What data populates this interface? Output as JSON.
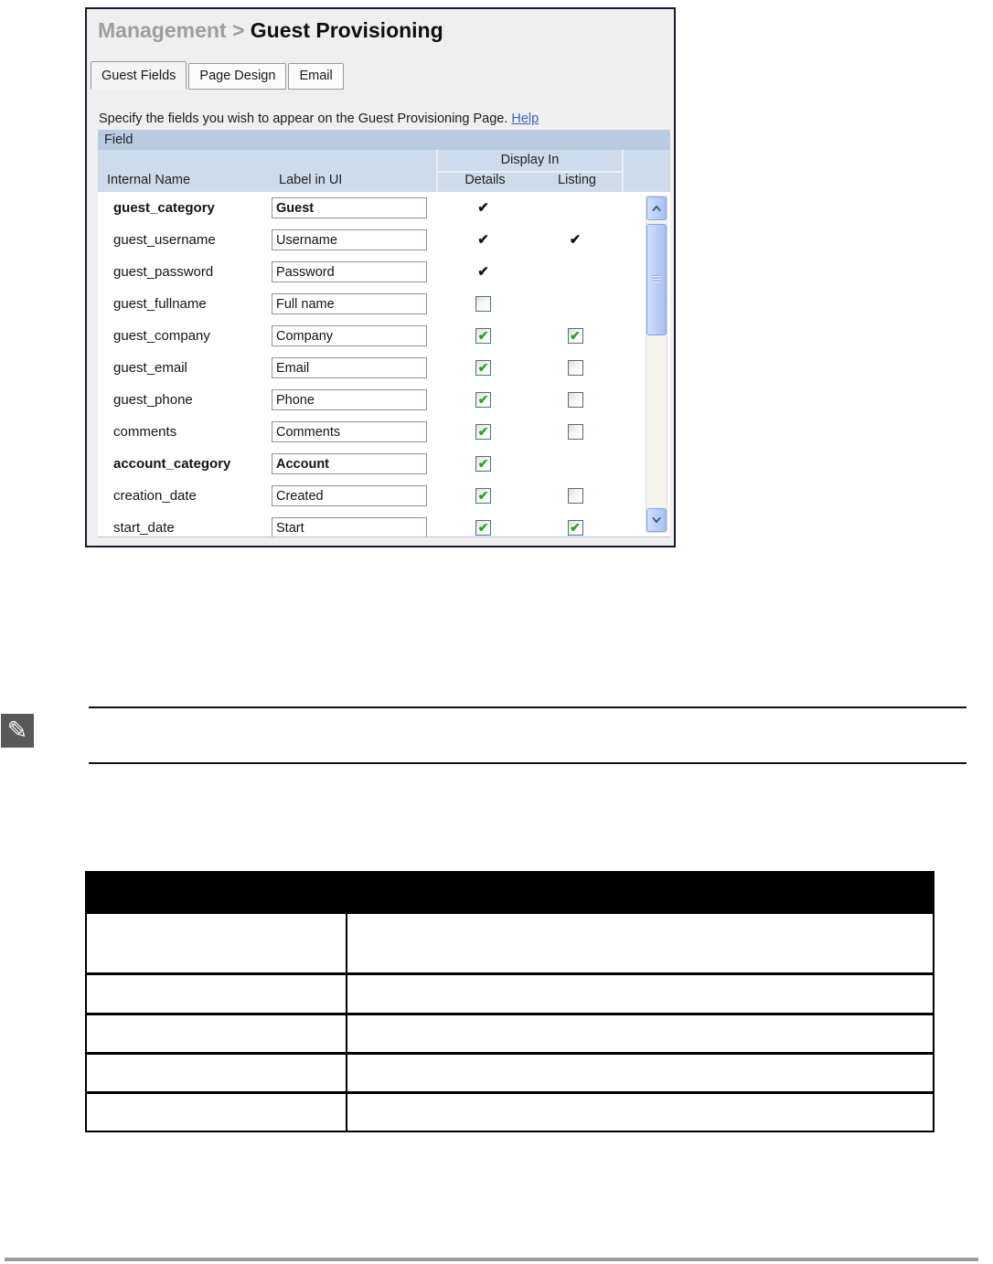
{
  "screenshot": {
    "breadcrumb": {
      "parent": "Management > ",
      "current": "Guest Provisioning"
    },
    "tabs": [
      {
        "label": "Guest Fields",
        "active": true
      },
      {
        "label": "Page Design",
        "active": false
      },
      {
        "label": "Email",
        "active": false
      }
    ],
    "instruction": "Specify the fields you wish to appear on the Guest Provisioning Page.",
    "help_link": "Help",
    "table": {
      "group_header": "Field",
      "columns": {
        "internal_name": "Internal Name",
        "label_in_ui": "Label in UI",
        "display_in": "Display In",
        "details": "Details",
        "listing": "Listing"
      },
      "rows": [
        {
          "internal_name": "guest_category",
          "label": "Guest",
          "bold": true,
          "details": "check-plain",
          "listing": "none"
        },
        {
          "internal_name": "guest_username",
          "label": "Username",
          "bold": false,
          "details": "check-plain",
          "listing": "check-plain"
        },
        {
          "internal_name": "guest_password",
          "label": "Password",
          "bold": false,
          "details": "check-plain",
          "listing": "none"
        },
        {
          "internal_name": "guest_fullname",
          "label": "Full name",
          "bold": false,
          "details": "checkbox-unchecked",
          "listing": "none"
        },
        {
          "internal_name": "guest_company",
          "label": "Company",
          "bold": false,
          "details": "checkbox-checked",
          "listing": "checkbox-checked"
        },
        {
          "internal_name": "guest_email",
          "label": "Email",
          "bold": false,
          "details": "checkbox-checked",
          "listing": "checkbox-unchecked"
        },
        {
          "internal_name": "guest_phone",
          "label": "Phone",
          "bold": false,
          "details": "checkbox-checked",
          "listing": "checkbox-unchecked"
        },
        {
          "internal_name": "comments",
          "label": "Comments",
          "bold": false,
          "details": "checkbox-checked",
          "listing": "checkbox-unchecked"
        },
        {
          "internal_name": "account_category",
          "label": "Account",
          "bold": true,
          "details": "checkbox-checked",
          "listing": "none"
        },
        {
          "internal_name": "creation_date",
          "label": "Created",
          "bold": false,
          "details": "checkbox-checked",
          "listing": "checkbox-unchecked"
        },
        {
          "internal_name": "start_date",
          "label": "Start",
          "bold": false,
          "details": "checkbox-checked",
          "listing": "checkbox-checked"
        }
      ]
    },
    "scrollbar": {
      "up_icon": "chevron-up",
      "down_icon": "chevron-down"
    }
  },
  "note": {
    "icon": "pencil-note-icon",
    "glyph": "✎"
  },
  "reference_table": {
    "header": [
      "",
      ""
    ],
    "rows": [
      [
        "",
        ""
      ],
      [
        "",
        ""
      ],
      [
        "",
        ""
      ],
      [
        "",
        ""
      ],
      [
        "",
        ""
      ]
    ]
  },
  "colors": {
    "panel_border": "#191930",
    "field_header_bg": "#b9cbe0",
    "subheader_bg": "#cddbea",
    "check_green": "#22a522",
    "scrollbar_blue": "#a8c0f0",
    "help_link": "#3a62c8",
    "ref_table_header_bg": "#000000",
    "footer_rule": "#9b9b9b"
  }
}
